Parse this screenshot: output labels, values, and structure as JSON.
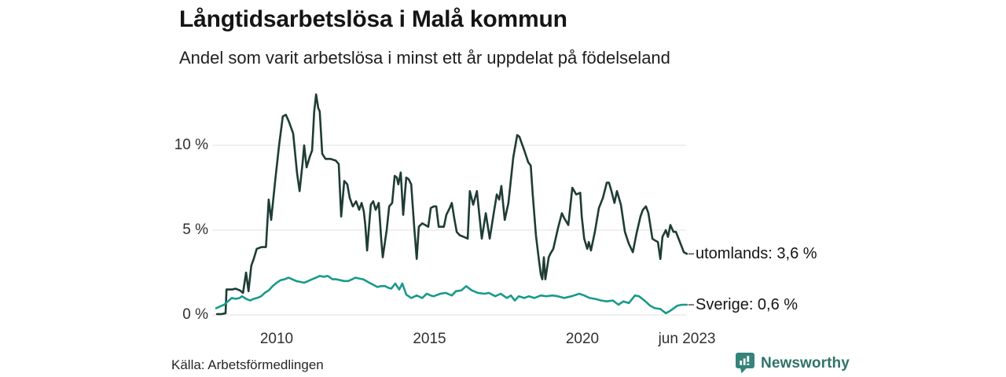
{
  "footer": {
    "source": "Källa: Arbetsförmedlingen",
    "brand": "Newsworthy",
    "brand_color": "#2e736b",
    "brand_icon": "newsworthy-bubble-chart-icon",
    "brand_icon_color": "#35837b"
  },
  "chart_data": {
    "type": "line",
    "title": "Långtidsarbetslösa i Malå kommun",
    "subtitle": "Andel som varit arbetslösa i minst ett år uppdelat på födelseland",
    "unit": "%",
    "grid": true,
    "grid_color": "#e2e2e2",
    "legend_position": "end-of-line-labels-right",
    "x_axis": {
      "ticks": [
        "2010",
        "2015",
        "2020",
        "jun 2023"
      ],
      "tick_positions": [
        2010,
        2015,
        2020,
        2023.42
      ],
      "range": [
        2008.0,
        2023.45
      ]
    },
    "y_axis": {
      "ticks": [
        "0 %",
        "5 %",
        "10 %"
      ],
      "tick_values": [
        0,
        5,
        10
      ],
      "range": [
        0,
        13.5
      ]
    },
    "series": [
      {
        "name": "utomlands",
        "label": "utomlands: 3,6 %",
        "last_value": "3,6 %",
        "color": "#1e3c35",
        "points": [
          [
            2008.05,
            0.05
          ],
          [
            2008.2,
            0.05
          ],
          [
            2008.33,
            0.1
          ],
          [
            2008.36,
            1.5
          ],
          [
            2008.55,
            1.5
          ],
          [
            2008.65,
            1.55
          ],
          [
            2008.8,
            1.45
          ],
          [
            2008.9,
            1.3
          ],
          [
            2009.0,
            2.5
          ],
          [
            2009.08,
            1.4
          ],
          [
            2009.17,
            2.9
          ],
          [
            2009.25,
            3.3
          ],
          [
            2009.35,
            3.9
          ],
          [
            2009.5,
            4.0
          ],
          [
            2009.65,
            4.0
          ],
          [
            2009.74,
            6.8
          ],
          [
            2009.82,
            5.6
          ],
          [
            2009.95,
            7.9
          ],
          [
            2010.08,
            10.0
          ],
          [
            2010.2,
            11.7
          ],
          [
            2010.3,
            11.8
          ],
          [
            2010.4,
            11.4
          ],
          [
            2010.54,
            10.7
          ],
          [
            2010.67,
            8.3
          ],
          [
            2010.75,
            7.3
          ],
          [
            2010.85,
            9.0
          ],
          [
            2010.9,
            10.0
          ],
          [
            2010.98,
            8.7
          ],
          [
            2011.08,
            9.3
          ],
          [
            2011.16,
            9.7
          ],
          [
            2011.23,
            12.0
          ],
          [
            2011.29,
            13.0
          ],
          [
            2011.36,
            12.2
          ],
          [
            2011.41,
            12.0
          ],
          [
            2011.49,
            9.5
          ],
          [
            2011.6,
            9.2
          ],
          [
            2011.75,
            9.2
          ],
          [
            2011.93,
            9.1
          ],
          [
            2012.03,
            8.9
          ],
          [
            2012.11,
            5.8
          ],
          [
            2012.21,
            7.9
          ],
          [
            2012.31,
            7.7
          ],
          [
            2012.39,
            6.9
          ],
          [
            2012.49,
            6.4
          ],
          [
            2012.6,
            6.7
          ],
          [
            2012.7,
            6.2
          ],
          [
            2012.78,
            6.6
          ],
          [
            2012.85,
            6.1
          ],
          [
            2012.9,
            5.3
          ],
          [
            2012.96,
            3.8
          ],
          [
            2013.08,
            6.5
          ],
          [
            2013.16,
            6.7
          ],
          [
            2013.24,
            6.2
          ],
          [
            2013.34,
            6.6
          ],
          [
            2013.42,
            4.5
          ],
          [
            2013.47,
            3.4
          ],
          [
            2013.6,
            5.0
          ],
          [
            2013.68,
            6.4
          ],
          [
            2013.78,
            6.6
          ],
          [
            2013.86,
            8.2
          ],
          [
            2013.93,
            8.1
          ],
          [
            2013.98,
            7.7
          ],
          [
            2014.06,
            8.4
          ],
          [
            2014.14,
            5.9
          ],
          [
            2014.24,
            8.1
          ],
          [
            2014.32,
            8.0
          ],
          [
            2014.4,
            7.7
          ],
          [
            2014.5,
            5.2
          ],
          [
            2014.58,
            3.3
          ],
          [
            2014.65,
            5.2
          ],
          [
            2014.76,
            5.4
          ],
          [
            2014.86,
            5.3
          ],
          [
            2014.96,
            5.2
          ],
          [
            2015.04,
            6.3
          ],
          [
            2015.14,
            6.4
          ],
          [
            2015.22,
            6.4
          ],
          [
            2015.3,
            5.2
          ],
          [
            2015.4,
            5.2
          ],
          [
            2015.47,
            5.2
          ],
          [
            2015.55,
            5.9
          ],
          [
            2015.66,
            6.3
          ],
          [
            2015.73,
            6.6
          ],
          [
            2015.81,
            5.7
          ],
          [
            2015.89,
            4.9
          ],
          [
            2015.99,
            4.7
          ],
          [
            2016.12,
            4.6
          ],
          [
            2016.25,
            4.5
          ],
          [
            2016.32,
            7.3
          ],
          [
            2016.43,
            6.5
          ],
          [
            2016.55,
            7.3
          ],
          [
            2016.71,
            4.5
          ],
          [
            2016.84,
            6.0
          ],
          [
            2016.97,
            4.5
          ],
          [
            2017.1,
            6.0
          ],
          [
            2017.2,
            7.1
          ],
          [
            2017.28,
            6.8
          ],
          [
            2017.35,
            7.6
          ],
          [
            2017.46,
            5.6
          ],
          [
            2017.58,
            6.6
          ],
          [
            2017.74,
            9.3
          ],
          [
            2017.87,
            10.6
          ],
          [
            2017.94,
            10.5
          ],
          [
            2018.0,
            10.2
          ],
          [
            2018.1,
            9.7
          ],
          [
            2018.23,
            9.0
          ],
          [
            2018.31,
            8.8
          ],
          [
            2018.38,
            7.0
          ],
          [
            2018.48,
            4.7
          ],
          [
            2018.56,
            3.5
          ],
          [
            2018.64,
            2.4
          ],
          [
            2018.69,
            2.1
          ],
          [
            2018.74,
            3.4
          ],
          [
            2018.79,
            2.1
          ],
          [
            2018.9,
            3.4
          ],
          [
            2018.95,
            3.6
          ],
          [
            2019.05,
            3.9
          ],
          [
            2019.2,
            5.1
          ],
          [
            2019.33,
            6.0
          ],
          [
            2019.41,
            5.7
          ],
          [
            2019.54,
            5.3
          ],
          [
            2019.67,
            7.5
          ],
          [
            2019.8,
            7.1
          ],
          [
            2019.93,
            7.2
          ],
          [
            2019.98,
            5.8
          ],
          [
            2020.06,
            4.5
          ],
          [
            2020.16,
            3.9
          ],
          [
            2020.21,
            4.3
          ],
          [
            2020.28,
            3.8
          ],
          [
            2020.41,
            4.9
          ],
          [
            2020.54,
            6.3
          ],
          [
            2020.67,
            6.9
          ],
          [
            2020.8,
            7.8
          ],
          [
            2020.87,
            7.8
          ],
          [
            2020.95,
            7.3
          ],
          [
            2021.05,
            6.6
          ],
          [
            2021.13,
            7.3
          ],
          [
            2021.26,
            6.5
          ],
          [
            2021.39,
            4.9
          ],
          [
            2021.52,
            4.2
          ],
          [
            2021.65,
            3.7
          ],
          [
            2021.77,
            4.8
          ],
          [
            2021.9,
            5.8
          ],
          [
            2021.98,
            6.2
          ],
          [
            2022.08,
            6.4
          ],
          [
            2022.16,
            6.0
          ],
          [
            2022.29,
            4.5
          ],
          [
            2022.37,
            4.4
          ],
          [
            2022.47,
            4.3
          ],
          [
            2022.55,
            3.3
          ],
          [
            2022.62,
            4.6
          ],
          [
            2022.73,
            5.0
          ],
          [
            2022.8,
            4.6
          ],
          [
            2022.88,
            5.3
          ],
          [
            2022.98,
            4.9
          ],
          [
            2023.06,
            4.9
          ],
          [
            2023.19,
            4.3
          ],
          [
            2023.32,
            3.7
          ],
          [
            2023.42,
            3.6
          ]
        ]
      },
      {
        "name": "Sverige",
        "label": "Sverige: 0,6 %",
        "last_value": "0,6 %",
        "color": "#189a8b",
        "points": [
          [
            2008.02,
            0.4
          ],
          [
            2008.15,
            0.5
          ],
          [
            2008.28,
            0.6
          ],
          [
            2008.41,
            0.8
          ],
          [
            2008.53,
            1.0
          ],
          [
            2008.66,
            0.95
          ],
          [
            2008.79,
            1.0
          ],
          [
            2008.87,
            1.1
          ],
          [
            2009.0,
            0.95
          ],
          [
            2009.13,
            0.85
          ],
          [
            2009.25,
            0.95
          ],
          [
            2009.36,
            1.0
          ],
          [
            2009.49,
            1.1
          ],
          [
            2009.61,
            1.3
          ],
          [
            2009.74,
            1.45
          ],
          [
            2009.87,
            1.7
          ],
          [
            2010.0,
            1.9
          ],
          [
            2010.13,
            2.05
          ],
          [
            2010.26,
            2.1
          ],
          [
            2010.39,
            2.2
          ],
          [
            2010.51,
            2.1
          ],
          [
            2010.64,
            2.0
          ],
          [
            2010.77,
            1.95
          ],
          [
            2010.9,
            1.9
          ],
          [
            2011.03,
            2.0
          ],
          [
            2011.16,
            2.1
          ],
          [
            2011.29,
            2.2
          ],
          [
            2011.41,
            2.3
          ],
          [
            2011.54,
            2.25
          ],
          [
            2011.67,
            2.3
          ],
          [
            2011.83,
            2.1
          ],
          [
            2011.95,
            2.1
          ],
          [
            2012.08,
            2.05
          ],
          [
            2012.21,
            2.0
          ],
          [
            2012.34,
            2.0
          ],
          [
            2012.47,
            2.1
          ],
          [
            2012.57,
            2.2
          ],
          [
            2012.7,
            2.15
          ],
          [
            2012.83,
            2.1
          ],
          [
            2012.93,
            2.0
          ],
          [
            2013.03,
            1.9
          ],
          [
            2013.14,
            1.8
          ],
          [
            2013.24,
            1.7
          ],
          [
            2013.29,
            1.65
          ],
          [
            2013.42,
            1.7
          ],
          [
            2013.55,
            1.7
          ],
          [
            2013.65,
            1.6
          ],
          [
            2013.75,
            1.55
          ],
          [
            2013.88,
            1.85
          ],
          [
            2014.01,
            1.5
          ],
          [
            2014.11,
            1.85
          ],
          [
            2014.24,
            1.2
          ],
          [
            2014.4,
            1.0
          ],
          [
            2014.58,
            1.15
          ],
          [
            2014.76,
            1.0
          ],
          [
            2014.91,
            1.25
          ],
          [
            2015.04,
            1.15
          ],
          [
            2015.14,
            1.1
          ],
          [
            2015.35,
            1.25
          ],
          [
            2015.53,
            1.3
          ],
          [
            2015.73,
            1.15
          ],
          [
            2015.86,
            1.4
          ],
          [
            2016.04,
            1.45
          ],
          [
            2016.2,
            1.7
          ],
          [
            2016.38,
            1.45
          ],
          [
            2016.58,
            1.3
          ],
          [
            2016.81,
            1.25
          ],
          [
            2016.94,
            1.3
          ],
          [
            2017.15,
            1.1
          ],
          [
            2017.33,
            1.25
          ],
          [
            2017.53,
            1.0
          ],
          [
            2017.66,
            1.15
          ],
          [
            2017.79,
            0.85
          ],
          [
            2017.92,
            1.1
          ],
          [
            2018.1,
            1.0
          ],
          [
            2018.25,
            1.1
          ],
          [
            2018.43,
            1.0
          ],
          [
            2018.64,
            1.15
          ],
          [
            2018.82,
            1.1
          ],
          [
            2019.02,
            1.15
          ],
          [
            2019.2,
            1.1
          ],
          [
            2019.41,
            1.0
          ],
          [
            2019.64,
            1.1
          ],
          [
            2019.9,
            1.25
          ],
          [
            2020.06,
            1.15
          ],
          [
            2020.24,
            1.0
          ],
          [
            2020.41,
            0.95
          ],
          [
            2020.62,
            0.85
          ],
          [
            2020.8,
            0.8
          ],
          [
            2021.0,
            0.85
          ],
          [
            2021.18,
            0.6
          ],
          [
            2021.34,
            0.8
          ],
          [
            2021.52,
            0.7
          ],
          [
            2021.72,
            1.15
          ],
          [
            2021.85,
            1.1
          ],
          [
            2022.03,
            0.85
          ],
          [
            2022.21,
            0.55
          ],
          [
            2022.37,
            0.4
          ],
          [
            2022.55,
            0.35
          ],
          [
            2022.73,
            0.1
          ],
          [
            2022.88,
            0.25
          ],
          [
            2023.11,
            0.55
          ],
          [
            2023.26,
            0.6
          ],
          [
            2023.42,
            0.6
          ]
        ]
      }
    ]
  }
}
